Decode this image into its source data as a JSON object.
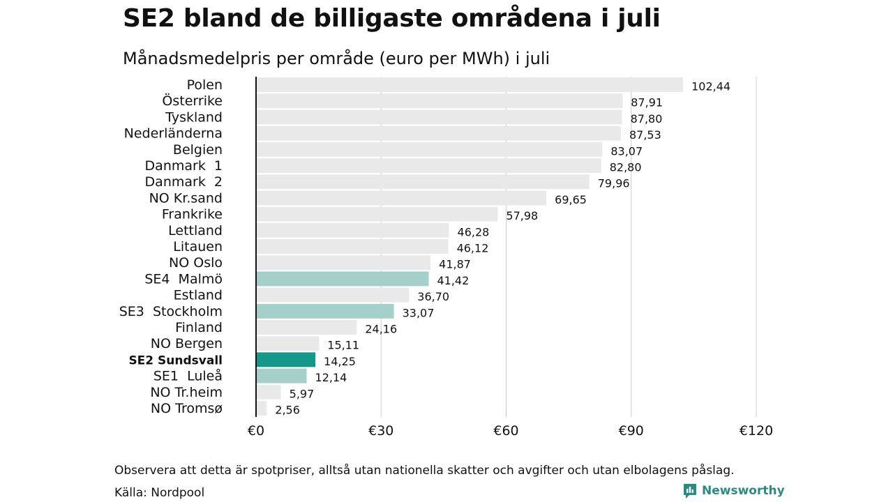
{
  "header": {
    "title": "SE2 bland de billigaste områdena i juli",
    "subtitle": "Månadsmedelpris per område (euro per MWh) i juli"
  },
  "footer": {
    "note": "Observera att detta är spotpriser, alltså utan nationella skatter och avgifter och utan elbolagens påslag.",
    "source": "Källa: Nordpool",
    "brand": "Newsworthy",
    "brand_icon": "newsworthy-logo-icon"
  },
  "colors": {
    "bar_default": "#e9e9e9",
    "bar_se_other": "#a5cfc9",
    "bar_highlight": "#17968a",
    "grid": "#cccccc",
    "axis": "#111111",
    "brand": "#2a8b84"
  },
  "chart_data": {
    "type": "bar",
    "orientation": "horizontal",
    "categories": [
      "Polen",
      "Österrike",
      "Tyskland",
      "Nederländerna",
      "Belgien",
      "Danmark  1",
      "Danmark  2",
      "NO Kr.sand",
      "Frankrike",
      "Lettland",
      "Litauen",
      "NO Oslo",
      "SE4  Malmö",
      "Estland",
      "SE3  Stockholm",
      "Finland",
      "NO Bergen",
      "SE2 Sundsvall",
      "SE1  Luleå",
      "NO Tr.heim",
      "NO Tromsø"
    ],
    "values": [
      102.44,
      87.91,
      87.8,
      87.53,
      83.07,
      82.8,
      79.96,
      69.65,
      57.98,
      46.28,
      46.12,
      41.87,
      41.42,
      36.7,
      33.07,
      24.16,
      15.11,
      14.25,
      12.14,
      5.97,
      2.56
    ],
    "value_labels": [
      "102,44",
      "87,91",
      "87,80",
      "87,53",
      "83,07",
      "82,80",
      "79,96",
      "69,65",
      "57,98",
      "46,28",
      "46,12",
      "41,87",
      "41,42",
      "36,70",
      "33,07",
      "24,16",
      "15,11",
      "14,25",
      "12,14",
      "5,97",
      "2,56"
    ],
    "bar_groups": [
      "other",
      "other",
      "other",
      "other",
      "other",
      "other",
      "other",
      "other",
      "other",
      "other",
      "other",
      "other",
      "se",
      "other",
      "se",
      "other",
      "other",
      "highlight",
      "se",
      "other",
      "other"
    ],
    "highlight_category": "SE2 Sundsvall",
    "xlim": [
      0,
      120
    ],
    "xticks": [
      0,
      30,
      60,
      90,
      120
    ],
    "xtick_labels": [
      "€0",
      "€30",
      "€60",
      "€90",
      "€120"
    ],
    "grid": true,
    "legend": "none"
  }
}
